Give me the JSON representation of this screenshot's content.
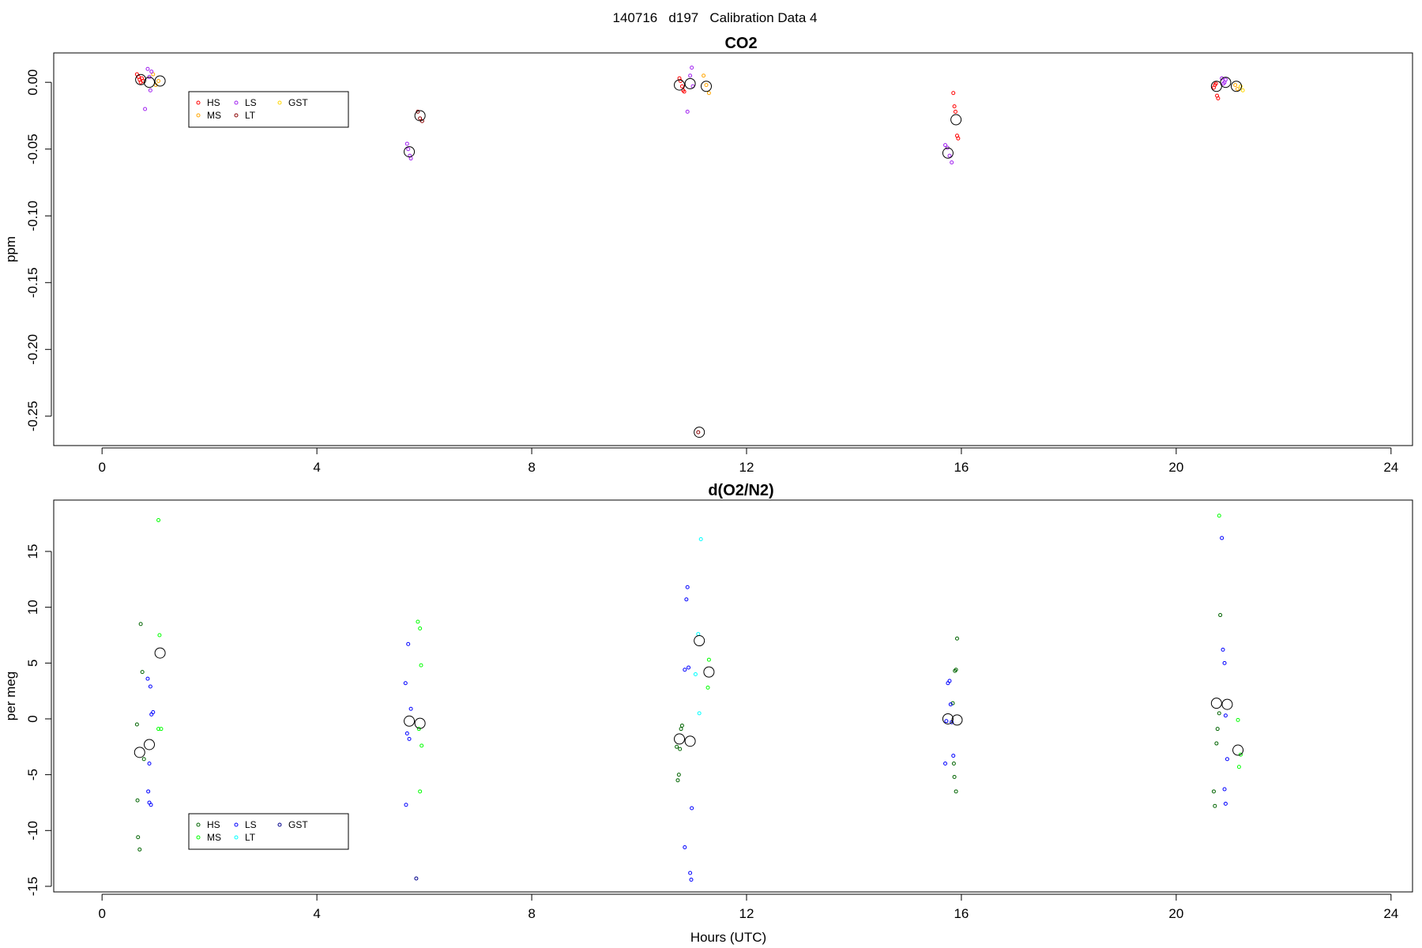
{
  "page_title": "140716   d197   Calibration Data 4",
  "chart_data": [
    {
      "type": "scatter",
      "title": "CO2",
      "xlabel": "",
      "ylabel": "ppm",
      "xlim": [
        -0.9,
        24.4
      ],
      "ylim": [
        -0.272,
        0.022
      ],
      "x_ticks": [
        0,
        4,
        8,
        12,
        16,
        20,
        24
      ],
      "y_ticks": [
        0.0,
        -0.05,
        -0.1,
        -0.15,
        -0.2,
        -0.25
      ],
      "y_tick_labels": [
        "0.00",
        "-0.05",
        "-0.10",
        "-0.15",
        "-0.20",
        "-0.25"
      ],
      "grid": false,
      "legend": {
        "position": "top-left",
        "entries": [
          {
            "name": "HS",
            "color": "#ff0000"
          },
          {
            "name": "MS",
            "color": "#ffa500"
          },
          {
            "name": "LS",
            "color": "#a020f0"
          },
          {
            "name": "LT",
            "color": "#8b0000"
          },
          {
            "name": "GST",
            "color": "#ffd700"
          }
        ]
      },
      "series": [
        {
          "name": "HS",
          "color": "#ff0000",
          "points": [
            [
              0.65,
              0.006
            ],
            [
              0.68,
              0.004
            ],
            [
              0.7,
              0.002
            ],
            [
              0.72,
              0.0
            ],
            [
              0.74,
              0.003
            ],
            [
              0.76,
              0.001
            ],
            [
              10.75,
              0.003
            ],
            [
              10.77,
              0.001
            ],
            [
              10.8,
              -0.003
            ],
            [
              10.82,
              -0.006
            ],
            [
              10.84,
              -0.007
            ],
            [
              15.85,
              -0.008
            ],
            [
              15.87,
              -0.018
            ],
            [
              15.89,
              -0.022
            ],
            [
              15.92,
              -0.04
            ],
            [
              15.94,
              -0.042
            ],
            [
              20.7,
              -0.004
            ],
            [
              20.72,
              -0.002
            ],
            [
              20.74,
              -0.001
            ],
            [
              20.76,
              -0.01
            ],
            [
              20.78,
              -0.012
            ]
          ]
        },
        {
          "name": "MS",
          "color": "#ffa500",
          "points": [
            [
              0.95,
              0.006
            ],
            [
              1.0,
              -0.002
            ],
            [
              1.05,
              0.001
            ],
            [
              11.2,
              0.005
            ],
            [
              11.25,
              -0.002
            ],
            [
              11.3,
              -0.008
            ],
            [
              21.1,
              -0.002
            ],
            [
              21.14,
              -0.005
            ]
          ]
        },
        {
          "name": "LS",
          "color": "#a020f0",
          "points": [
            [
              0.8,
              -0.02
            ],
            [
              0.85,
              0.01
            ],
            [
              0.88,
              0.004
            ],
            [
              0.9,
              -0.006
            ],
            [
              0.92,
              0.008
            ],
            [
              5.68,
              -0.046
            ],
            [
              5.7,
              -0.05
            ],
            [
              5.73,
              -0.055
            ],
            [
              5.75,
              -0.057
            ],
            [
              10.9,
              -0.022
            ],
            [
              10.95,
              0.005
            ],
            [
              10.98,
              0.011
            ],
            [
              11.0,
              -0.003
            ],
            [
              15.7,
              -0.047
            ],
            [
              15.74,
              -0.049
            ],
            [
              15.78,
              -0.055
            ],
            [
              15.82,
              -0.06
            ],
            [
              20.85,
              0.003
            ],
            [
              20.88,
              -0.001
            ],
            [
              20.9,
              0.0
            ],
            [
              20.92,
              0.002
            ]
          ]
        },
        {
          "name": "LT",
          "color": "#8b0000",
          "points": [
            [
              5.88,
              -0.022
            ],
            [
              5.92,
              -0.027
            ],
            [
              5.96,
              -0.029
            ],
            [
              11.1,
              -0.262
            ]
          ]
        },
        {
          "name": "GST",
          "color": "#ffd700",
          "points": [
            [
              21.2,
              -0.003
            ],
            [
              21.24,
              -0.006
            ]
          ]
        },
        {
          "name": "",
          "color": "#000000",
          "large": true,
          "points": [
            [
              0.72,
              0.002
            ],
            [
              0.88,
              0.0
            ],
            [
              1.08,
              0.001
            ],
            [
              5.72,
              -0.052
            ],
            [
              5.92,
              -0.025
            ],
            [
              10.75,
              -0.002
            ],
            [
              10.95,
              -0.001
            ],
            [
              11.25,
              -0.003
            ],
            [
              11.12,
              -0.262
            ],
            [
              15.75,
              -0.053
            ],
            [
              15.9,
              -0.028
            ],
            [
              20.75,
              -0.003
            ],
            [
              20.92,
              0.0
            ],
            [
              21.12,
              -0.003
            ]
          ]
        }
      ]
    },
    {
      "type": "scatter",
      "title": "d(O2/N2)",
      "xlabel": "Hours (UTC)",
      "ylabel": "per meg",
      "xlim": [
        -0.9,
        24.4
      ],
      "ylim": [
        -15.5,
        19.6
      ],
      "x_ticks": [
        0,
        4,
        8,
        12,
        16,
        20,
        24
      ],
      "y_ticks": [
        15,
        10,
        5,
        0,
        -5,
        -10,
        -15
      ],
      "y_tick_labels": [
        "15",
        "10",
        "5",
        "0",
        "-5",
        "-10",
        "-15"
      ],
      "grid": false,
      "legend": {
        "position": "bottom-left",
        "entries": [
          {
            "name": "HS",
            "color": "#006400"
          },
          {
            "name": "MS",
            "color": "#00ff00"
          },
          {
            "name": "LS",
            "color": "#0000ff"
          },
          {
            "name": "LT",
            "color": "#00ffff"
          },
          {
            "name": "GST",
            "color": "#00008b"
          }
        ]
      },
      "series": [
        {
          "name": "HS",
          "color": "#006400",
          "points": [
            [
              0.65,
              -0.5
            ],
            [
              0.66,
              -7.3
            ],
            [
              0.67,
              -10.6
            ],
            [
              0.7,
              -11.7
            ],
            [
              0.72,
              8.5
            ],
            [
              0.75,
              4.2
            ],
            [
              0.78,
              -3.6
            ],
            [
              10.7,
              -2.5
            ],
            [
              10.72,
              -5.5
            ],
            [
              10.74,
              -5.0
            ],
            [
              10.76,
              -2.7
            ],
            [
              10.78,
              -0.9
            ],
            [
              10.8,
              -0.6
            ],
            [
              15.88,
              4.3
            ],
            [
              15.9,
              4.4
            ],
            [
              15.92,
              7.2
            ],
            [
              15.84,
              1.4
            ],
            [
              15.86,
              -4.0
            ],
            [
              15.87,
              -5.2
            ],
            [
              15.9,
              -6.5
            ],
            [
              20.7,
              -6.5
            ],
            [
              20.72,
              -7.8
            ],
            [
              20.75,
              -2.2
            ],
            [
              20.77,
              -0.9
            ],
            [
              20.8,
              0.5
            ],
            [
              20.82,
              9.3
            ]
          ]
        },
        {
          "name": "MS",
          "color": "#00ff00",
          "points": [
            [
              1.05,
              17.8
            ],
            [
              1.07,
              7.5
            ],
            [
              1.05,
              -0.9
            ],
            [
              1.1,
              -0.9
            ],
            [
              5.88,
              8.7
            ],
            [
              5.92,
              8.1
            ],
            [
              5.94,
              4.8
            ],
            [
              5.92,
              -6.5
            ],
            [
              5.95,
              -2.4
            ],
            [
              5.9,
              -0.9
            ],
            [
              11.3,
              5.3
            ],
            [
              11.28,
              2.8
            ],
            [
              20.8,
              18.2
            ],
            [
              21.15,
              -0.1
            ],
            [
              21.17,
              -4.3
            ],
            [
              21.2,
              -3.2
            ]
          ]
        },
        {
          "name": "LS",
          "color": "#0000ff",
          "points": [
            [
              0.85,
              3.6
            ],
            [
              0.9,
              2.9
            ],
            [
              0.92,
              0.4
            ],
            [
              0.95,
              0.6
            ],
            [
              0.88,
              -4.0
            ],
            [
              0.86,
              -6.5
            ],
            [
              0.88,
              -7.5
            ],
            [
              0.91,
              -7.7
            ],
            [
              5.7,
              6.7
            ],
            [
              5.65,
              3.2
            ],
            [
              5.75,
              0.9
            ],
            [
              5.68,
              -1.3
            ],
            [
              5.72,
              -1.8
            ],
            [
              5.66,
              -7.7
            ],
            [
              10.9,
              11.8
            ],
            [
              10.88,
              10.7
            ],
            [
              10.85,
              4.4
            ],
            [
              10.92,
              4.6
            ],
            [
              10.98,
              -8.0
            ],
            [
              10.85,
              -11.5
            ],
            [
              10.95,
              -13.8
            ],
            [
              10.97,
              -14.4
            ],
            [
              15.75,
              3.2
            ],
            [
              15.78,
              3.4
            ],
            [
              15.8,
              1.3
            ],
            [
              15.72,
              -0.2
            ],
            [
              15.82,
              -0.3
            ],
            [
              15.85,
              -3.3
            ],
            [
              15.7,
              -4.0
            ],
            [
              20.85,
              16.2
            ],
            [
              20.87,
              6.2
            ],
            [
              20.9,
              5.0
            ],
            [
              20.92,
              0.3
            ],
            [
              20.95,
              -3.6
            ],
            [
              20.9,
              -6.3
            ],
            [
              20.92,
              -7.6
            ]
          ]
        },
        {
          "name": "LT",
          "color": "#00ffff",
          "points": [
            [
              11.15,
              16.1
            ],
            [
              11.1,
              7.6
            ],
            [
              11.05,
              4.0
            ],
            [
              11.12,
              0.5
            ]
          ]
        },
        {
          "name": "GST",
          "color": "#00008b",
          "points": [
            [
              5.85,
              -14.3
            ]
          ]
        },
        {
          "name": "",
          "color": "#000000",
          "large": true,
          "points": [
            [
              0.7,
              -3.0
            ],
            [
              0.88,
              -2.3
            ],
            [
              1.08,
              5.9
            ],
            [
              5.72,
              -0.2
            ],
            [
              5.92,
              -0.4
            ],
            [
              10.75,
              -1.8
            ],
            [
              10.95,
              -2.0
            ],
            [
              11.12,
              7.0
            ],
            [
              11.3,
              4.2
            ],
            [
              15.75,
              0.0
            ],
            [
              15.92,
              -0.1
            ],
            [
              20.75,
              1.4
            ],
            [
              20.95,
              1.3
            ],
            [
              21.15,
              -2.8
            ]
          ]
        }
      ]
    }
  ]
}
